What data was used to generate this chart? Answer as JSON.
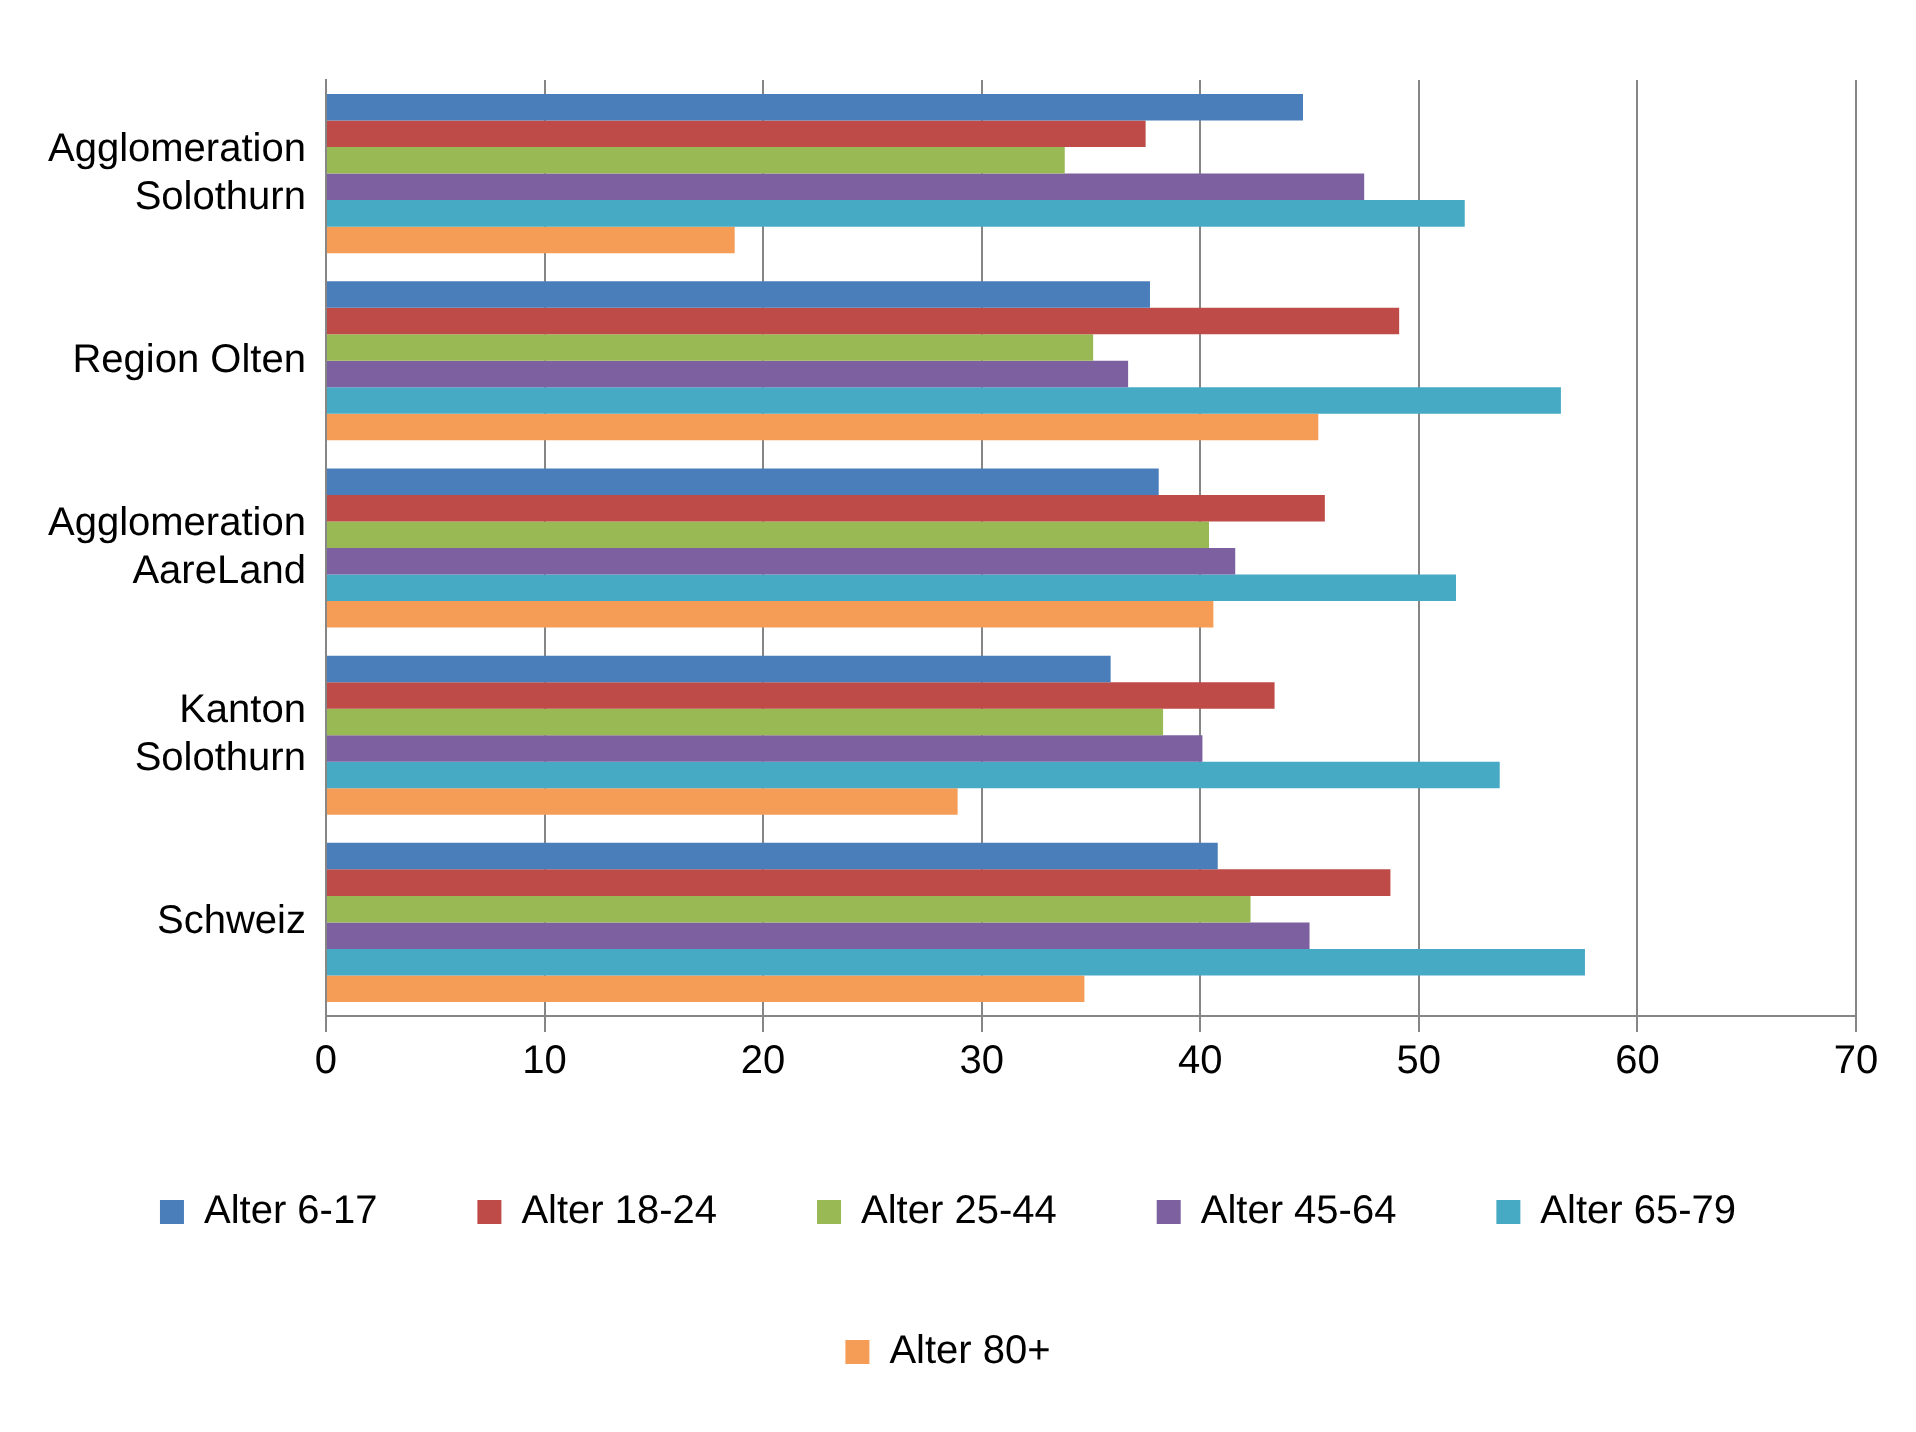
{
  "chart_data": {
    "type": "bar",
    "orientation": "horizontal",
    "categories": [
      "Agglomeration\nSolothurn",
      "Region Olten",
      "Agglomeration\nAareLand",
      "Kanton\nSolothurn",
      "Schweiz"
    ],
    "series": [
      {
        "name": "Alter 6-17",
        "color": "#4a7ebb",
        "values": [
          44.7,
          37.7,
          38.1,
          35.9,
          40.8
        ]
      },
      {
        "name": "Alter 18-24",
        "color": "#be4b48",
        "values": [
          37.5,
          49.1,
          45.7,
          43.4,
          48.7
        ]
      },
      {
        "name": "Alter 25-44",
        "color": "#98b954",
        "values": [
          33.8,
          35.1,
          40.4,
          38.3,
          42.3
        ]
      },
      {
        "name": "Alter 45-64",
        "color": "#7d60a0",
        "values": [
          47.5,
          36.7,
          41.6,
          40.1,
          45.0
        ]
      },
      {
        "name": "Alter 65-79",
        "color": "#46aac5",
        "values": [
          52.1,
          56.5,
          51.7,
          53.7,
          57.6
        ]
      },
      {
        "name": "Alter 80+",
        "color": "#f59d56",
        "values": [
          18.7,
          45.4,
          40.6,
          28.9,
          34.7
        ]
      }
    ],
    "xlim": [
      0,
      70
    ],
    "xticks": [
      0,
      10,
      20,
      30,
      40,
      50,
      60,
      70
    ],
    "grid": "x",
    "legend": "bottom"
  }
}
